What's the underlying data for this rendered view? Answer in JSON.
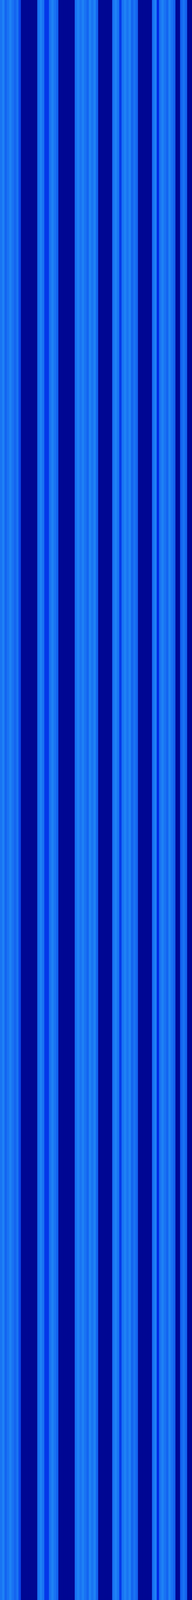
{
  "chart_data": {
    "type": "heatmap",
    "x": [
      0,
      1,
      2,
      3,
      4,
      5,
      6,
      7,
      8,
      9,
      10,
      11,
      12,
      13,
      14,
      15,
      16,
      17,
      18,
      19,
      20,
      21,
      22,
      23,
      24,
      25,
      26,
      27,
      28,
      29,
      30,
      31,
      32,
      33,
      34,
      35,
      36,
      37,
      38,
      39,
      40,
      41,
      42,
      43,
      44,
      45,
      46,
      47,
      48,
      49,
      50,
      51,
      52,
      53,
      54,
      55,
      56,
      57,
      58,
      59,
      60,
      61,
      62,
      63,
      64,
      65,
      66,
      67,
      68,
      69,
      70,
      71,
      72,
      73,
      74,
      75,
      76,
      77,
      78,
      79,
      80,
      81
    ],
    "values": [
      0.55,
      0.6,
      0.5,
      0.55,
      0.6,
      0.55,
      0.5,
      0.55,
      0.4,
      0.05,
      0.05,
      0.05,
      0.05,
      0.05,
      0.05,
      0.05,
      0.55,
      0.6,
      0.55,
      0.35,
      0.35,
      0.55,
      0.6,
      0.55,
      0.5,
      0.05,
      0.05,
      0.05,
      0.05,
      0.05,
      0.05,
      0.05,
      0.55,
      0.6,
      0.55,
      0.6,
      0.55,
      0.5,
      0.6,
      0.55,
      0.6,
      0.5,
      0.05,
      0.05,
      0.05,
      0.05,
      0.05,
      0.05,
      0.55,
      0.6,
      0.55,
      0.35,
      0.55,
      0.6,
      0.55,
      0.6,
      0.5,
      0.55,
      0.5,
      0.05,
      0.05,
      0.05,
      0.05,
      0.05,
      0.05,
      0.55,
      0.6,
      0.3,
      0.55,
      0.6,
      0.55,
      0.5,
      0.6,
      0.55,
      0.5,
      0.05,
      0.05,
      0.5,
      0.55,
      0.5,
      0.05,
      0.05
    ],
    "ylim": [
      0,
      1
    ],
    "color_range": [
      0,
      1
    ],
    "tick_labels": false
  }
}
